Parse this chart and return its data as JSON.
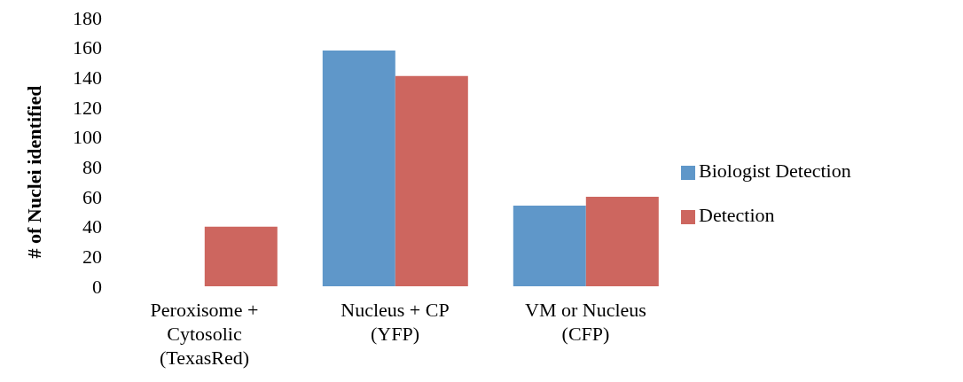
{
  "chart_data": {
    "type": "bar",
    "ylabel": "# of Nuclei identified",
    "categories": [
      "Peroxisome + Cytosolic (TexasRed)",
      "Nucleus + CP (YFP)",
      "VM or Nucleus (CFP)"
    ],
    "series": [
      {
        "name": "Biologist Detection",
        "color": "#5f97c9",
        "values": [
          0,
          158,
          54
        ]
      },
      {
        "name": "Detection",
        "color": "#cd665f",
        "values": [
          40,
          141,
          60
        ]
      }
    ],
    "ylim": [
      0,
      180
    ],
    "yticks": [
      0,
      20,
      40,
      60,
      80,
      100,
      120,
      140,
      160,
      180
    ],
    "grid": false,
    "legend": "right"
  }
}
